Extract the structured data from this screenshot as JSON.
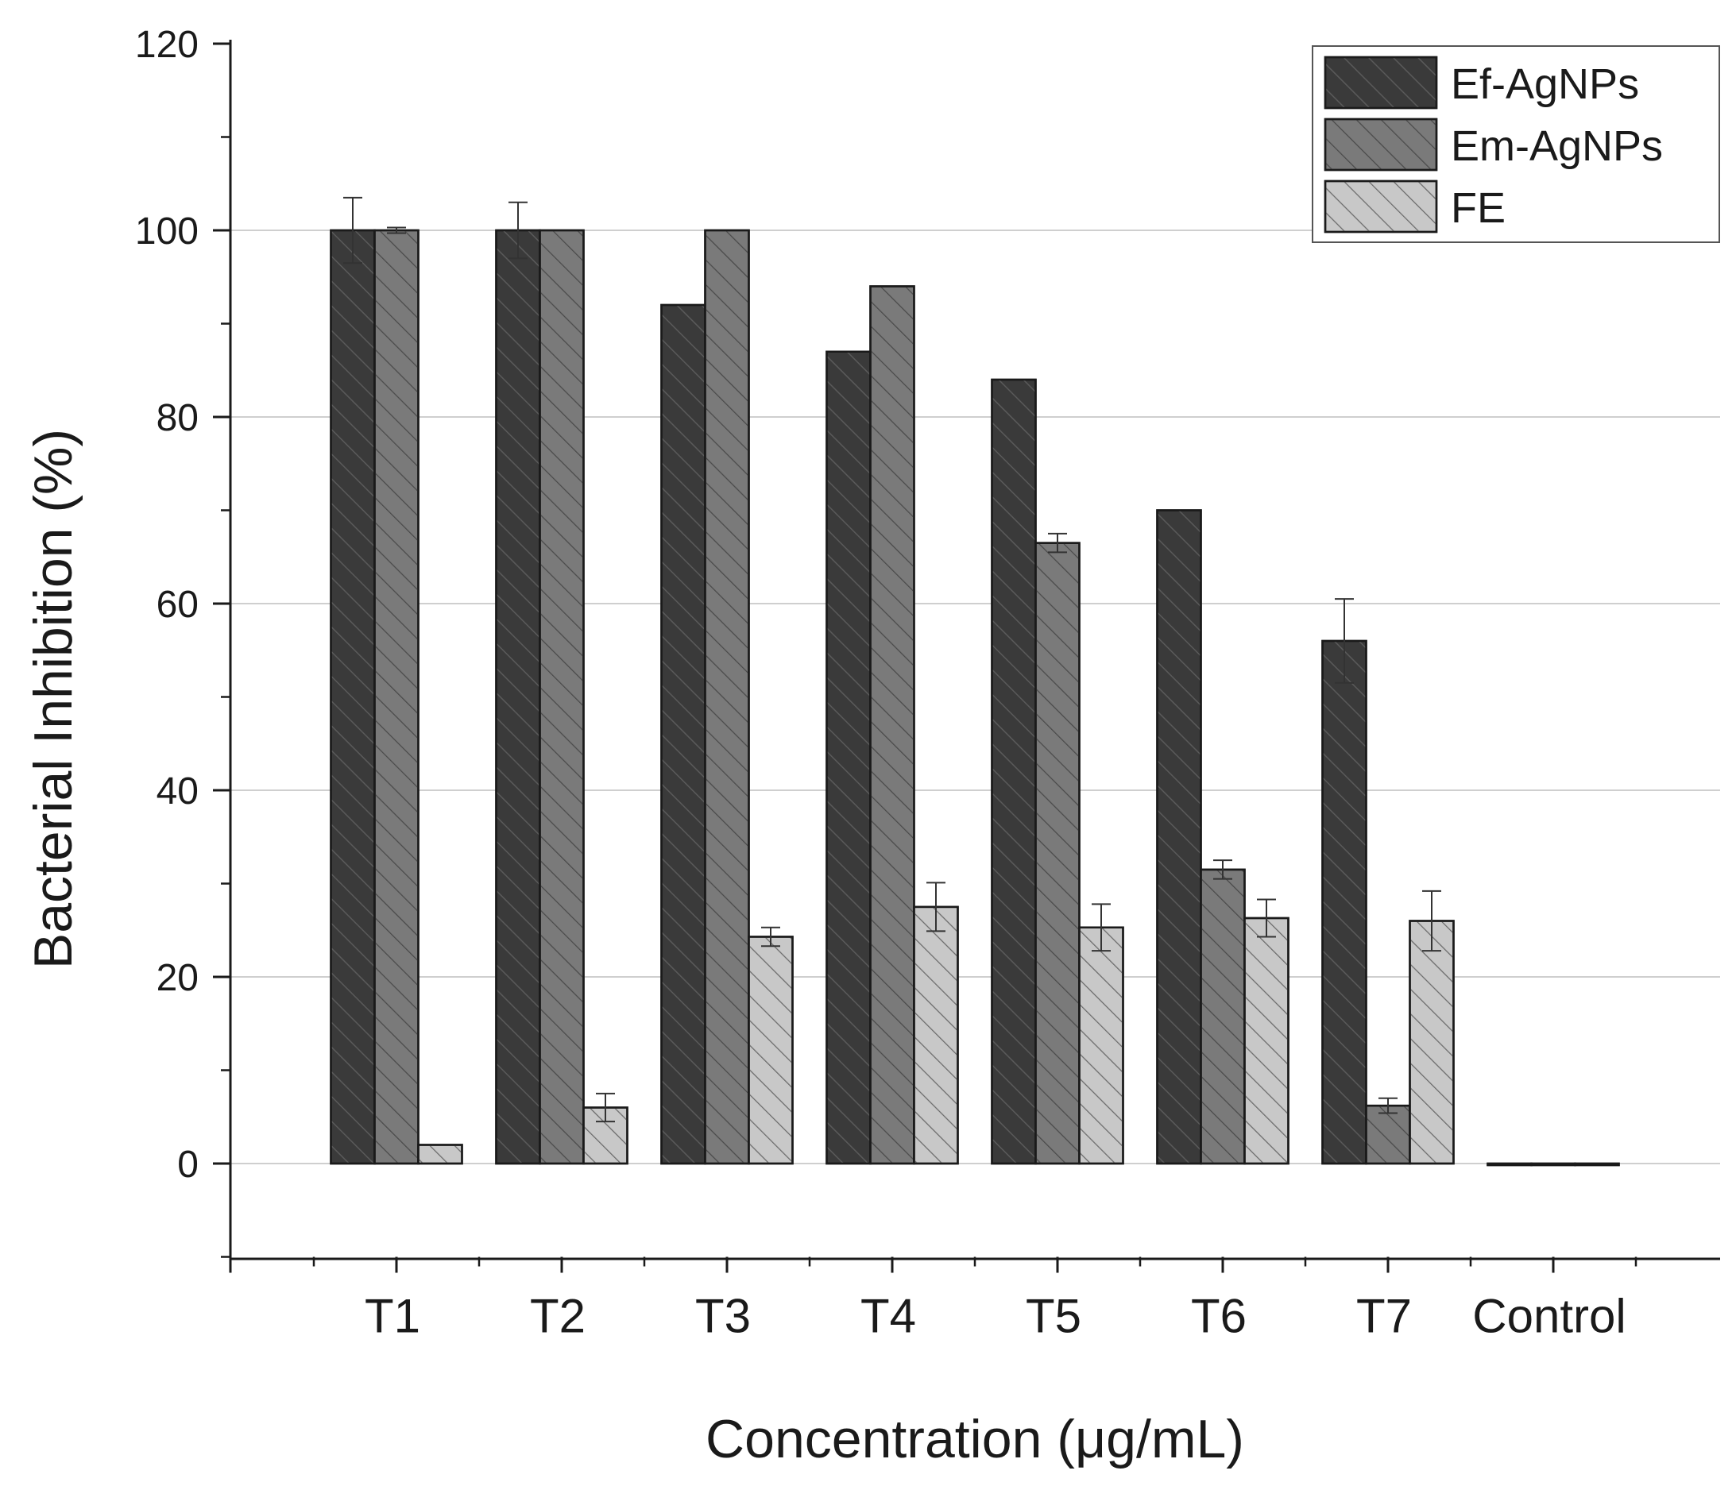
{
  "chart_data": {
    "type": "bar",
    "title": "",
    "xlabel": "Concentration (μg/mL)",
    "ylabel": "Bacterial Inhibition (%)",
    "categories": [
      "T1",
      "T2",
      "T3",
      "T4",
      "T5",
      "T6",
      "T7",
      "Control"
    ],
    "ylim": [
      -10,
      120
    ],
    "yticks": [
      0,
      20,
      40,
      60,
      80,
      100,
      120
    ],
    "grid": true,
    "legend_position": "top-right",
    "series": [
      {
        "name": "Ef-AgNPs",
        "color": "#3a3a3a",
        "values": [
          100,
          100,
          92,
          87,
          84,
          70,
          56,
          0
        ],
        "errors": [
          3.5,
          3,
          0,
          0,
          0,
          0,
          4.5,
          0
        ]
      },
      {
        "name": "Em-AgNPs",
        "color": "#7a7a7a",
        "values": [
          100,
          100,
          100,
          94,
          66.5,
          31.5,
          6.2,
          0
        ],
        "errors": [
          0.3,
          0,
          0,
          0,
          1,
          1,
          0.8,
          0
        ]
      },
      {
        "name": "FE",
        "color": "#c8c8c8",
        "values": [
          2,
          6,
          24.3,
          27.5,
          25.3,
          26.3,
          26,
          0
        ],
        "errors": [
          0,
          1.5,
          1,
          2.6,
          2.5,
          2,
          3.2,
          0
        ]
      }
    ]
  }
}
